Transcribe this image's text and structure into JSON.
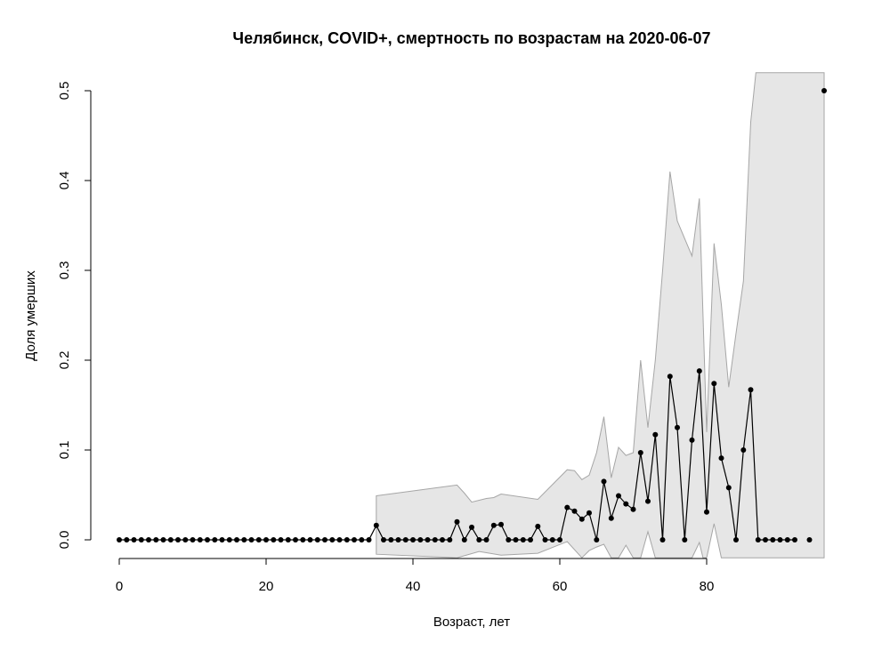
{
  "chart_data": {
    "type": "line",
    "title": "Челябинск, COVID+, смертность по возрастам на 2020-06-07",
    "xlabel": "Возраст, лет",
    "ylabel": "Доля умерших",
    "xlim": [
      0,
      96
    ],
    "ylim": [
      0,
      0.5
    ],
    "x_ticks": [
      0,
      20,
      40,
      60,
      80
    ],
    "y_ticks": [
      0.0,
      0.1,
      0.2,
      0.3,
      0.4,
      0.5
    ],
    "x_tick_labels": [
      "0",
      "20",
      "40",
      "60",
      "80"
    ],
    "y_tick_labels": [
      "0.0",
      "0.1",
      "0.2",
      "0.3",
      "0.4",
      "0.5"
    ],
    "grid": false,
    "colors": {
      "line": "#000000",
      "point": "#000000",
      "band_fill": "#e6e6e6",
      "band_stroke": "#a6a6a6"
    },
    "series": [
      {
        "points": [
          [
            0,
            0
          ],
          [
            1,
            0
          ],
          [
            2,
            0
          ],
          [
            3,
            0
          ],
          [
            4,
            0
          ],
          [
            5,
            0
          ],
          [
            6,
            0
          ],
          [
            7,
            0
          ],
          [
            8,
            0
          ],
          [
            9,
            0
          ],
          [
            10,
            0
          ],
          [
            11,
            0
          ],
          [
            12,
            0
          ],
          [
            13,
            0
          ],
          [
            14,
            0
          ],
          [
            15,
            0
          ],
          [
            16,
            0
          ],
          [
            17,
            0
          ],
          [
            18,
            0
          ],
          [
            19,
            0
          ],
          [
            20,
            0
          ],
          [
            21,
            0
          ],
          [
            22,
            0
          ],
          [
            23,
            0
          ],
          [
            24,
            0
          ],
          [
            25,
            0
          ],
          [
            26,
            0
          ],
          [
            27,
            0
          ],
          [
            28,
            0
          ],
          [
            29,
            0
          ],
          [
            30,
            0
          ],
          [
            31,
            0
          ],
          [
            32,
            0
          ],
          [
            33,
            0
          ],
          [
            34,
            0
          ],
          [
            35,
            0.016
          ],
          [
            36,
            0
          ],
          [
            37,
            0
          ],
          [
            38,
            0
          ],
          [
            39,
            0
          ],
          [
            40,
            0
          ],
          [
            41,
            0
          ],
          [
            42,
            0
          ],
          [
            43,
            0
          ],
          [
            44,
            0
          ],
          [
            45,
            0
          ],
          [
            46,
            0.02
          ],
          [
            47,
            0
          ],
          [
            48,
            0.014
          ],
          [
            49,
            0
          ],
          [
            50,
            0
          ],
          [
            51,
            0.016
          ],
          [
            52,
            0.017
          ],
          [
            53,
            0
          ],
          [
            54,
            0
          ],
          [
            55,
            0
          ],
          [
            56,
            0
          ],
          [
            57,
            0.015
          ],
          [
            58,
            0
          ],
          [
            59,
            0
          ],
          [
            60,
            0
          ],
          [
            61,
            0.036
          ],
          [
            62,
            0.032
          ],
          [
            63,
            0.023
          ],
          [
            64,
            0.03
          ],
          [
            65,
            0
          ],
          [
            66,
            0.065
          ],
          [
            67,
            0.024
          ],
          [
            68,
            0.049
          ],
          [
            69,
            0.04
          ],
          [
            70,
            0.034
          ],
          [
            71,
            0.097
          ],
          [
            72,
            0.043
          ],
          [
            73,
            0.117
          ],
          [
            74,
            0
          ],
          [
            75,
            0.182
          ],
          [
            76,
            0.125
          ],
          [
            77,
            0
          ],
          [
            78,
            0.111
          ],
          [
            79,
            0.188
          ],
          [
            80,
            0.031
          ],
          [
            81,
            0.174
          ],
          [
            82,
            0.091
          ],
          [
            83,
            0.058
          ],
          [
            84,
            0
          ],
          [
            85,
            0.1
          ],
          [
            86,
            0.167
          ],
          [
            87,
            0
          ],
          [
            88,
            0
          ],
          [
            89,
            0
          ],
          [
            90,
            0
          ],
          [
            91,
            0
          ],
          [
            92,
            0
          ]
        ],
        "extra_points": [
          [
            94,
            0
          ],
          [
            96,
            0.5
          ]
        ]
      }
    ],
    "confidence_band": {
      "upper": [
        [
          35,
          0.049
        ],
        [
          46,
          0.061
        ],
        [
          47,
          0.052
        ],
        [
          48,
          0.042
        ],
        [
          50,
          0.046
        ],
        [
          51,
          0.047
        ],
        [
          52,
          0.051
        ],
        [
          57,
          0.045
        ],
        [
          61,
          0.078
        ],
        [
          62,
          0.077
        ],
        [
          63,
          0.067
        ],
        [
          64,
          0.072
        ],
        [
          65,
          0.097
        ],
        [
          66,
          0.137
        ],
        [
          67,
          0.069
        ],
        [
          68,
          0.103
        ],
        [
          69,
          0.094
        ],
        [
          70,
          0.097
        ],
        [
          71,
          0.2
        ],
        [
          72,
          0.125
        ],
        [
          73,
          0.2
        ],
        [
          74,
          0.3
        ],
        [
          75,
          0.41
        ],
        [
          76,
          0.355
        ],
        [
          78,
          0.316
        ],
        [
          79,
          0.38
        ],
        [
          80,
          0.12
        ],
        [
          81,
          0.33
        ],
        [
          82,
          0.262
        ],
        [
          83,
          0.17
        ],
        [
          84,
          0.23
        ],
        [
          85,
          0.288
        ],
        [
          86,
          0.465
        ],
        [
          86.7,
          0.52
        ],
        [
          96,
          0.52
        ]
      ],
      "lower": [
        [
          96,
          -0.02
        ],
        [
          82,
          -0.02
        ],
        [
          81,
          0.018
        ],
        [
          80,
          -0.02
        ],
        [
          79.5,
          -0.02
        ],
        [
          79,
          -0.003
        ],
        [
          78,
          -0.02
        ],
        [
          73,
          -0.02
        ],
        [
          72,
          0.009
        ],
        [
          71,
          -0.02
        ],
        [
          70,
          -0.02
        ],
        [
          69,
          -0.006
        ],
        [
          68,
          -0.02
        ],
        [
          67,
          -0.02
        ],
        [
          66,
          -0.005
        ],
        [
          65,
          -0.008
        ],
        [
          64,
          -0.012
        ],
        [
          63,
          -0.02
        ],
        [
          61,
          -0.002
        ],
        [
          57,
          -0.015
        ],
        [
          52,
          -0.017
        ],
        [
          49,
          -0.013
        ],
        [
          46,
          -0.02
        ],
        [
          35,
          -0.016
        ]
      ]
    }
  }
}
